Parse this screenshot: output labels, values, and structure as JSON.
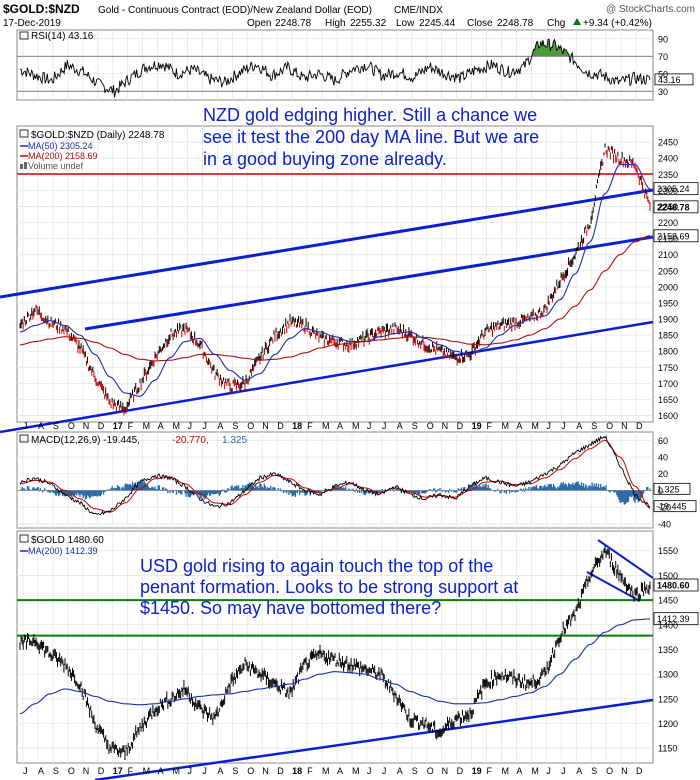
{
  "header": {
    "symbol": "$GOLD:$NZD",
    "description": "Gold - Continuous Contract (EOD)/New Zealand Dollar (EOD)",
    "exchange": "CME/INDX",
    "watermark": "@ StockCharts.com",
    "date": "17-Dec-2019",
    "open_label": "Open",
    "open": "2248.78",
    "high_label": "High",
    "high": "2255.32",
    "low_label": "Low",
    "low": "2245.44",
    "close_label": "Close",
    "close": "2248.78",
    "chg_label": "Chg",
    "chg": "+9.34 (+0.42%)",
    "chg_arrow_icon": "up-triangle-icon"
  },
  "colors": {
    "price": "#000000",
    "up_bar": "#000000",
    "down_bar": "#cc0000",
    "ma50": "#1a2fa8",
    "ma200": "#b01010",
    "trendline": "#0a1fd0",
    "support": "#0a7a0a",
    "resistance": "#cc0000",
    "annotation": "#0a1fd0",
    "rsi_fill_high": "#4a9a3a",
    "macd_hist": "#2a6aa8",
    "grid": "#e6e6e6"
  },
  "months_nzd": [
    "J",
    "A",
    "S",
    "O",
    "N",
    "D",
    "17",
    "F",
    "M",
    "A",
    "M",
    "J",
    "J",
    "A",
    "S",
    "O",
    "N",
    "D",
    "18",
    "F",
    "M",
    "A",
    "M",
    "J",
    "J",
    "A",
    "S",
    "O",
    "N",
    "D",
    "19",
    "F",
    "M",
    "A",
    "M",
    "J",
    "J",
    "A",
    "S",
    "O",
    "N",
    "D"
  ],
  "months_usd": [
    "J",
    "A",
    "S",
    "O",
    "N",
    "D",
    "17",
    "F",
    "M",
    "A",
    "M",
    "J",
    "J",
    "A",
    "S",
    "O",
    "N",
    "D",
    "18",
    "F",
    "M",
    "A",
    "M",
    "J",
    "J",
    "A",
    "S",
    "O",
    "N",
    "D",
    "19",
    "F",
    "M",
    "A",
    "M",
    "J",
    "J",
    "A",
    "S",
    "O",
    "N",
    "D"
  ],
  "chart_data": [
    {
      "type": "line",
      "panel": "RSI",
      "legend": "RSI(14) 43.16",
      "last_value": "43.16",
      "ticks": [
        "90",
        "70",
        "50",
        "30"
      ],
      "ylim": [
        20,
        100
      ],
      "reference_lines": [
        70,
        30
      ],
      "series": [
        {
          "values": [
            55,
            48,
            42,
            60,
            52,
            38,
            30,
            45,
            58,
            62,
            50,
            55,
            44,
            40,
            52,
            61,
            48,
            57,
            45,
            50,
            42,
            55,
            60,
            48,
            52,
            46,
            58,
            50,
            45,
            55,
            60,
            52,
            58,
            85,
            82,
            68,
            52,
            48,
            40,
            45,
            43
          ]
        }
      ]
    },
    {
      "type": "line",
      "panel": "GOLD:NZD",
      "title": "$GOLD:$NZD (Daily) 2248.78",
      "legend": [
        {
          "name": "$GOLD:$NZD (Daily) 2248.78",
          "icon": "price-bar-icon"
        },
        {
          "name": "MA(50) 2305.24",
          "color": "#1a2fa8"
        },
        {
          "name": "MA(200) 2158.69",
          "color": "#b01010"
        },
        {
          "name": "Volume undef",
          "icon": "volume-icon"
        }
      ],
      "ylim": [
        1580,
        2500
      ],
      "ticks": [
        "2450",
        "2400",
        "2350",
        "2300",
        "2250",
        "2200",
        "2150",
        "2100",
        "2050",
        "2000",
        "1950",
        "1900",
        "1850",
        "1800",
        "1750",
        "1700",
        "1650",
        "1600"
      ],
      "price_label": "2248.78",
      "ma50_label": "2305.24",
      "ma200_label": "2158.69",
      "series": [
        {
          "values": [
            1880,
            1930,
            1890,
            1870,
            1810,
            1720,
            1640,
            1620,
            1700,
            1780,
            1850,
            1870,
            1820,
            1730,
            1690,
            1700,
            1780,
            1850,
            1890,
            1880,
            1840,
            1830,
            1820,
            1840,
            1860,
            1870,
            1850,
            1820,
            1800,
            1780,
            1790,
            1860,
            1880,
            1890,
            1900,
            1930,
            2020,
            2100,
            2200,
            2430,
            2400,
            2380,
            2250
          ]
        },
        {
          "name": "MA(50)",
          "values": [
            1860,
            1880,
            1895,
            1880,
            1850,
            1790,
            1720,
            1670,
            1660,
            1710,
            1780,
            1830,
            1840,
            1790,
            1740,
            1710,
            1730,
            1790,
            1840,
            1870,
            1860,
            1845,
            1830,
            1830,
            1845,
            1855,
            1860,
            1840,
            1820,
            1800,
            1790,
            1810,
            1850,
            1880,
            1900,
            1910,
            1960,
            2040,
            2140,
            2290,
            2380,
            2380,
            2305
          ]
        },
        {
          "name": "MA(200)",
          "values": [
            1820,
            1830,
            1838,
            1845,
            1840,
            1828,
            1810,
            1790,
            1775,
            1770,
            1772,
            1780,
            1790,
            1790,
            1785,
            1778,
            1772,
            1775,
            1782,
            1795,
            1810,
            1820,
            1825,
            1830,
            1835,
            1840,
            1845,
            1843,
            1838,
            1830,
            1822,
            1820,
            1825,
            1835,
            1850,
            1870,
            1900,
            1940,
            1990,
            2050,
            2100,
            2140,
            2159
          ]
        }
      ],
      "annotation": [
        "NZD gold edging higher. Still a chance we",
        "see it test the 200 day MA line. But we are",
        "in a good buying zone already."
      ]
    },
    {
      "type": "line",
      "panel": "MACD",
      "legend": [
        "MACD(12,26,9) -19.445,",
        "-20.770,",
        "1.325"
      ],
      "ticks": [
        "60",
        "40",
        "20",
        "0",
        "-20",
        "-40"
      ],
      "ylim": [
        -45,
        70
      ],
      "macd_label": "-19.445",
      "hist_label": "1.325",
      "series": [
        {
          "name": "MACD",
          "values": [
            10,
            15,
            8,
            -5,
            -15,
            -30,
            -25,
            -10,
            10,
            18,
            15,
            5,
            -10,
            -20,
            -15,
            0,
            15,
            20,
            10,
            0,
            -5,
            5,
            10,
            0,
            -5,
            5,
            -5,
            -10,
            -5,
            -10,
            5,
            15,
            10,
            5,
            10,
            20,
            30,
            45,
            55,
            65,
            30,
            -5,
            -19
          ]
        },
        {
          "name": "Signal",
          "values": [
            8,
            12,
            10,
            0,
            -10,
            -22,
            -26,
            -15,
            2,
            14,
            16,
            8,
            -4,
            -15,
            -17,
            -5,
            10,
            18,
            14,
            3,
            -3,
            2,
            8,
            3,
            -3,
            3,
            -2,
            -8,
            -6,
            -8,
            0,
            10,
            11,
            7,
            8,
            15,
            25,
            38,
            50,
            60,
            40,
            5,
            -21
          ]
        }
      ]
    },
    {
      "type": "line",
      "panel": "GOLD",
      "legend": [
        {
          "name": "$GOLD 1480.60",
          "icon": "price-bar-icon"
        },
        {
          "name": "MA(200) 1412.39",
          "color": "#1a2fa8"
        }
      ],
      "ylim": [
        1120,
        1590
      ],
      "ticks": [
        "1550",
        "1500",
        "1450",
        "1400",
        "1350",
        "1300",
        "1250",
        "1200",
        "1150"
      ],
      "price_label": "1480.60",
      "ma200_label": "1412.39",
      "series": [
        {
          "values": [
            1360,
            1370,
            1340,
            1320,
            1280,
            1200,
            1150,
            1140,
            1190,
            1230,
            1250,
            1270,
            1230,
            1210,
            1280,
            1320,
            1300,
            1280,
            1260,
            1320,
            1340,
            1330,
            1320,
            1310,
            1300,
            1260,
            1210,
            1200,
            1180,
            1210,
            1220,
            1280,
            1300,
            1290,
            1280,
            1300,
            1380,
            1420,
            1500,
            1550,
            1500,
            1460,
            1480
          ]
        },
        {
          "name": "MA(200)",
          "values": [
            1220,
            1240,
            1260,
            1270,
            1265,
            1255,
            1245,
            1240,
            1238,
            1240,
            1245,
            1250,
            1255,
            1258,
            1260,
            1265,
            1270,
            1275,
            1280,
            1290,
            1300,
            1305,
            1303,
            1300,
            1290,
            1280,
            1265,
            1255,
            1245,
            1240,
            1240,
            1242,
            1248,
            1255,
            1262,
            1275,
            1300,
            1330,
            1360,
            1385,
            1400,
            1410,
            1412
          ]
        }
      ],
      "reference_lines": [
        1450,
        1378
      ],
      "annotation": [
        "USD gold rising to again touch the top of the",
        "penant formation. Looks to be strong support at",
        "$1450. So may have bottomed there?"
      ]
    }
  ]
}
